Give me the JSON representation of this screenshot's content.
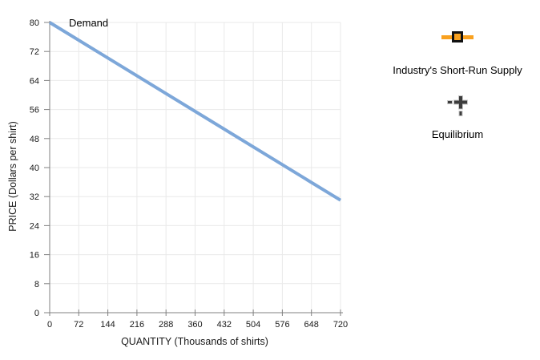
{
  "chart_data": {
    "type": "line",
    "title": "",
    "xlabel": "QUANTITY (Thousands of shirts)",
    "ylabel": "PRICE (Dollars per shirt)",
    "xlim": [
      0,
      720
    ],
    "ylim": [
      0,
      80
    ],
    "x_ticks": [
      0,
      72,
      144,
      216,
      288,
      360,
      432,
      504,
      576,
      648,
      720
    ],
    "y_ticks": [
      0,
      8,
      16,
      24,
      32,
      40,
      48,
      56,
      64,
      72,
      80
    ],
    "grid": true,
    "legend_position": "right",
    "series": [
      {
        "name": "Demand",
        "x": [
          0,
          720
        ],
        "y": [
          80,
          31
        ],
        "color": "#7DA7D9"
      }
    ]
  },
  "legend": {
    "items": [
      {
        "label": "Industry's Short-Run Supply",
        "icon": "supply-line-handle-icon"
      },
      {
        "label": "Equilibrium",
        "icon": "equilibrium-cross-icon"
      }
    ],
    "supply_color": "#F9A11F",
    "equilibrium_color": "#3D3D3D",
    "equilibrium_outline": "#C8C8C8"
  }
}
